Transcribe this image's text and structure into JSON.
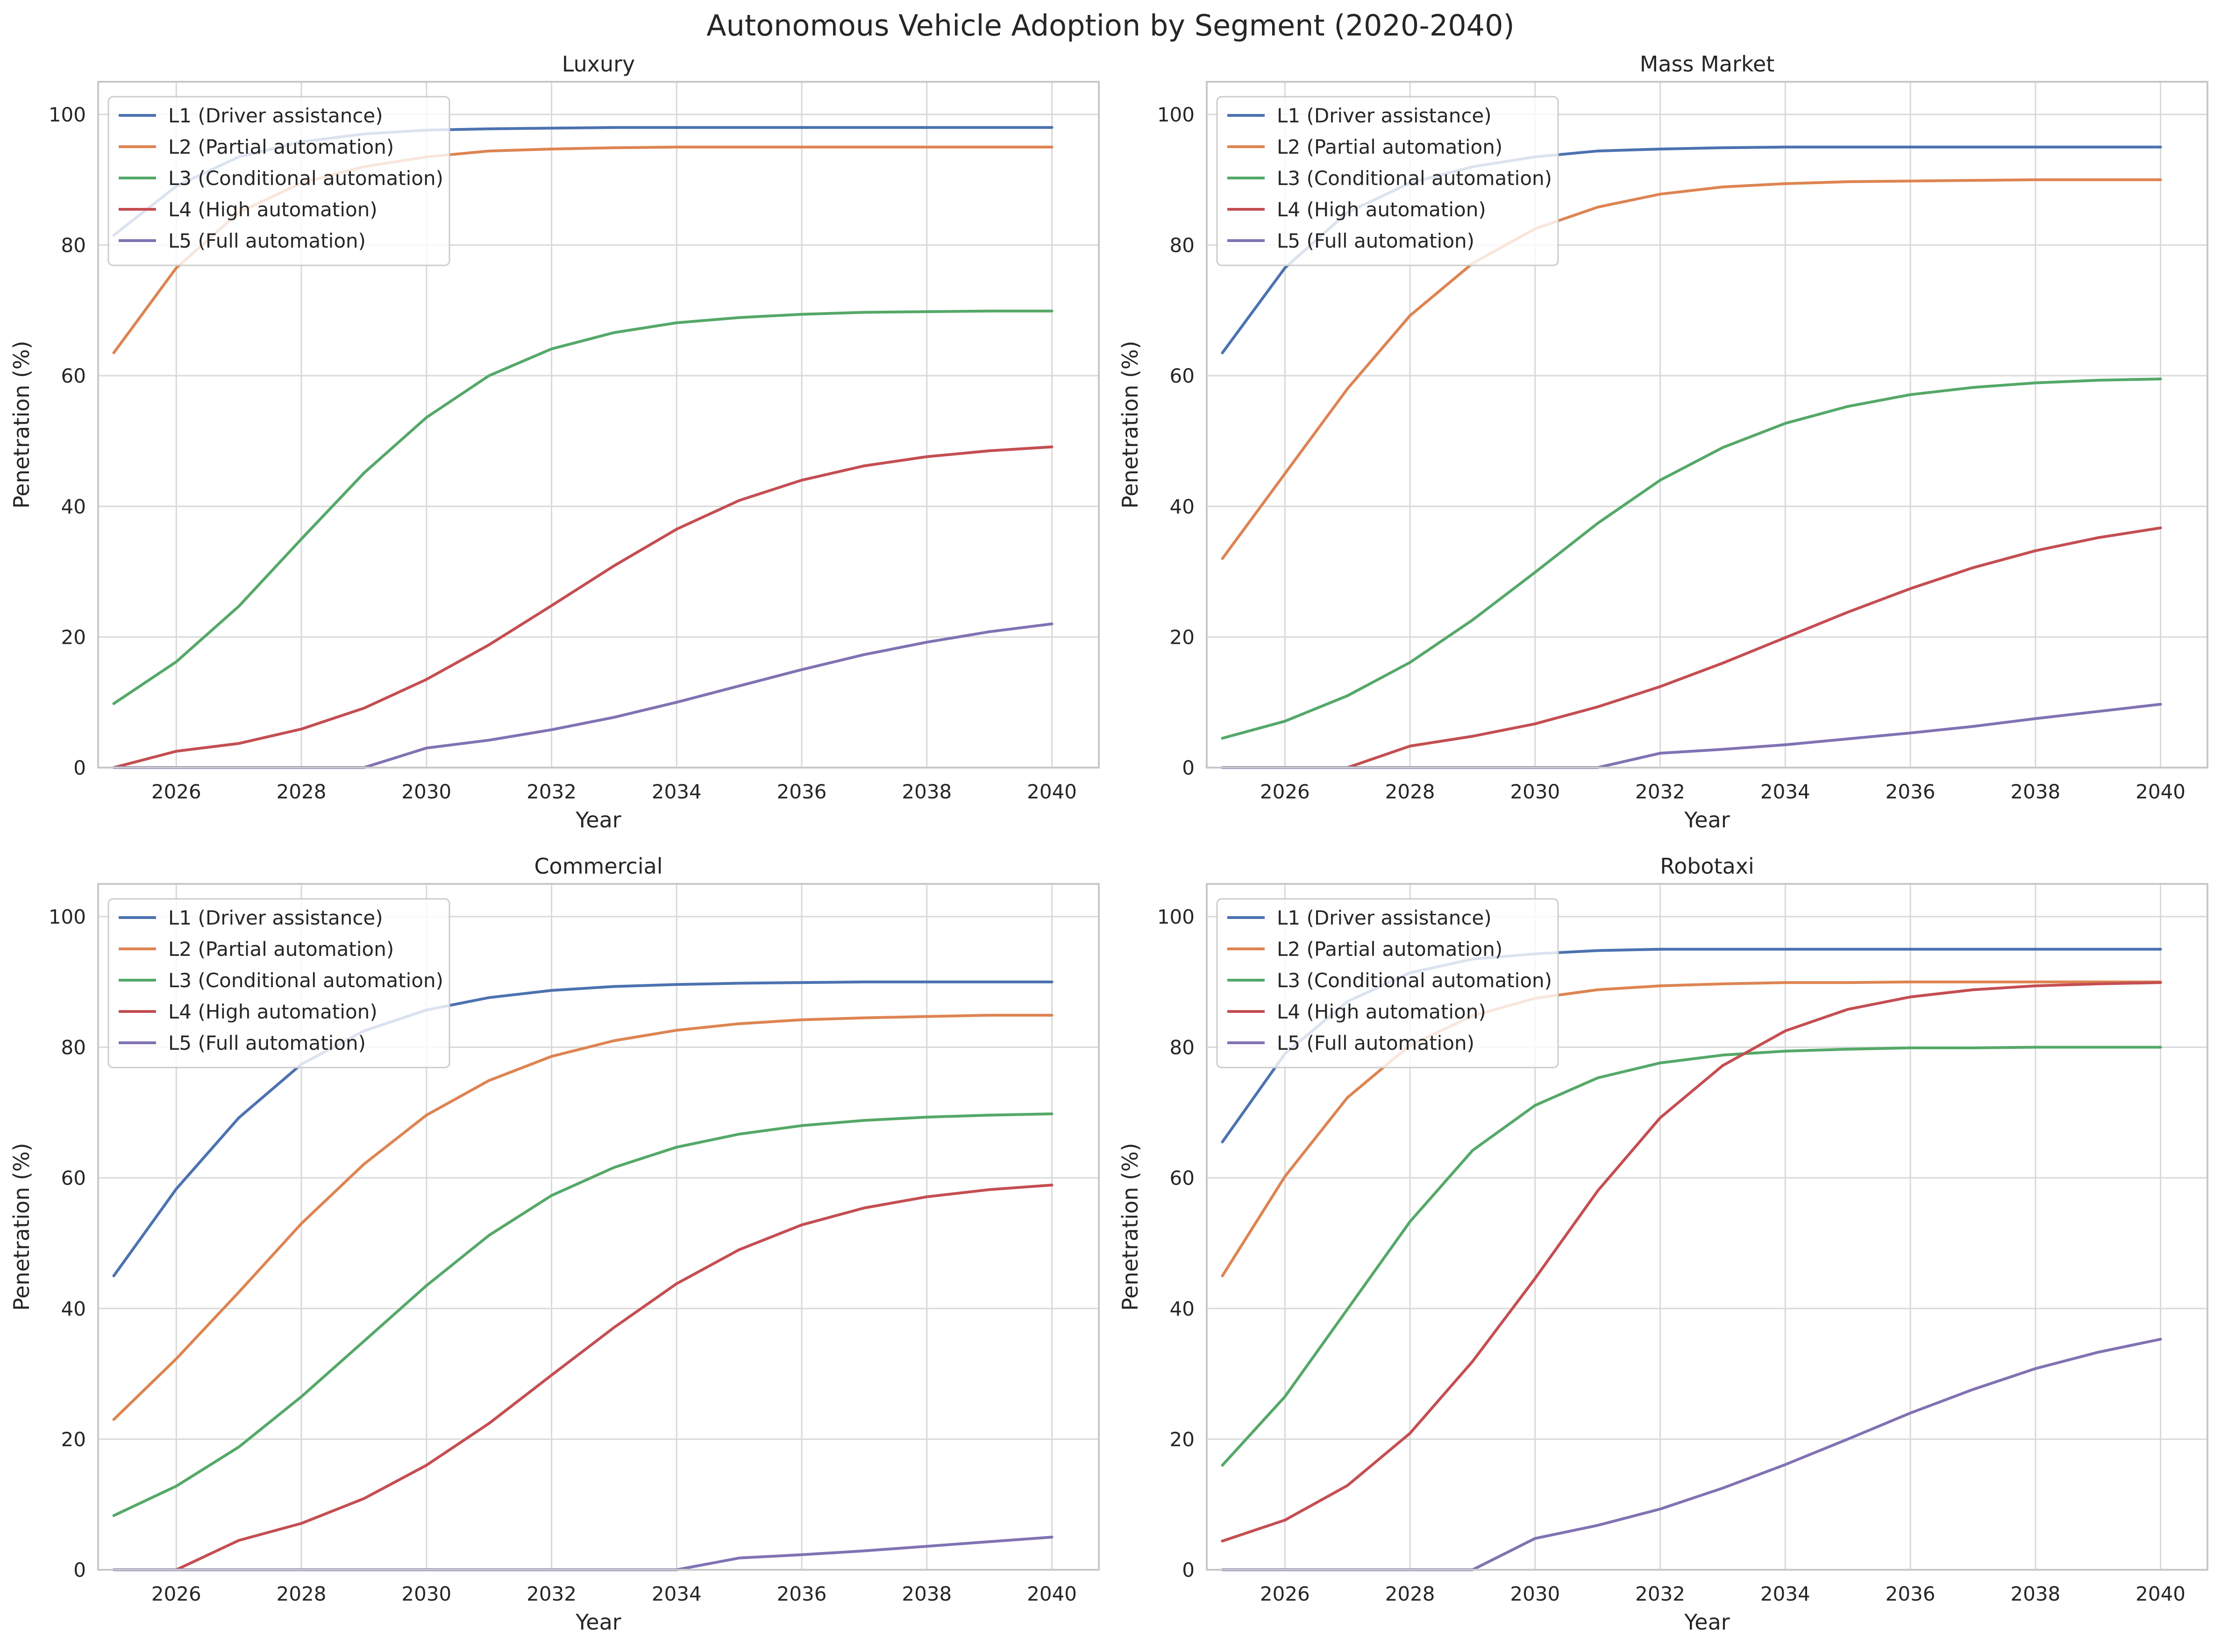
{
  "title": "Autonomous Vehicle Adoption by Segment (2020-2040)",
  "colors": {
    "L1": "#4c72b0",
    "L2": "#dd8452",
    "L3": "#55a868",
    "L4": "#c44e52",
    "L5": "#8172b3",
    "grid": "#d9d9d9",
    "frame": "#c8c8c8"
  },
  "chart_data": [
    {
      "type": "line",
      "title": "Luxury",
      "xlabel": "Year",
      "ylabel": "Penetration (%)",
      "xlim": [
        2024.75,
        2040.75
      ],
      "ylim": [
        0,
        105
      ],
      "xticks": [
        2026,
        2028,
        2030,
        2032,
        2034,
        2036,
        2038,
        2040
      ],
      "yticks": [
        0,
        20,
        40,
        60,
        80,
        100
      ],
      "grid": true,
      "legend": "upper left",
      "x": [
        2025,
        2026,
        2027,
        2028,
        2029,
        2030,
        2031,
        2032,
        2033,
        2034,
        2035,
        2036,
        2037,
        2038,
        2039,
        2040
      ],
      "series": [
        {
          "name": "L1 (Driver assistance)",
          "values": [
            81.5,
            89.0,
            93.5,
            95.8,
            97.0,
            97.6,
            97.8,
            97.9,
            98.0,
            98.0,
            98.0,
            98.0,
            98.0,
            98.0,
            98.0,
            98.0
          ]
        },
        {
          "name": "L2 (Partial automation)",
          "values": [
            63.5,
            76.5,
            85.0,
            89.5,
            92.0,
            93.5,
            94.4,
            94.7,
            94.9,
            95.0,
            95.0,
            95.0,
            95.0,
            95.0,
            95.0,
            95.0
          ]
        },
        {
          "name": "L3 (Conditional automation)",
          "values": [
            9.8,
            16.2,
            24.7,
            35.0,
            45.1,
            53.6,
            60.0,
            64.1,
            66.6,
            68.1,
            68.9,
            69.4,
            69.7,
            69.8,
            69.9,
            69.9
          ]
        },
        {
          "name": "L4 (High automation)",
          "values": [
            0.0,
            2.5,
            3.7,
            5.9,
            9.1,
            13.5,
            18.8,
            24.8,
            30.9,
            36.5,
            40.9,
            44.0,
            46.2,
            47.6,
            48.5,
            49.1
          ]
        },
        {
          "name": "L5 (Full automation)",
          "values": [
            0.0,
            0.0,
            0.0,
            0.0,
            0.0,
            3.0,
            4.2,
            5.8,
            7.7,
            10.0,
            12.5,
            15.0,
            17.3,
            19.2,
            20.8,
            22.0
          ]
        }
      ]
    },
    {
      "type": "line",
      "title": "Mass Market",
      "xlabel": "Year",
      "ylabel": "Penetration (%)",
      "xlim": [
        2024.75,
        2040.75
      ],
      "ylim": [
        0,
        105
      ],
      "xticks": [
        2026,
        2028,
        2030,
        2032,
        2034,
        2036,
        2038,
        2040
      ],
      "yticks": [
        0,
        20,
        40,
        60,
        80,
        100
      ],
      "grid": true,
      "legend": "upper left",
      "x": [
        2025,
        2026,
        2027,
        2028,
        2029,
        2030,
        2031,
        2032,
        2033,
        2034,
        2035,
        2036,
        2037,
        2038,
        2039,
        2040
      ],
      "series": [
        {
          "name": "L1 (Driver assistance)",
          "values": [
            63.5,
            76.5,
            85.0,
            89.5,
            92.0,
            93.5,
            94.4,
            94.7,
            94.9,
            95.0,
            95.0,
            95.0,
            95.0,
            95.0,
            95.0,
            95.0
          ]
        },
        {
          "name": "L2 (Partial automation)",
          "values": [
            32.0,
            45.0,
            58.0,
            69.2,
            77.2,
            82.5,
            85.8,
            87.8,
            88.9,
            89.4,
            89.7,
            89.8,
            89.9,
            90.0,
            90.0,
            90.0
          ]
        },
        {
          "name": "L3 (Conditional automation)",
          "values": [
            4.5,
            7.1,
            11.0,
            16.1,
            22.6,
            29.9,
            37.4,
            44.0,
            49.0,
            52.7,
            55.3,
            57.1,
            58.2,
            58.9,
            59.3,
            59.5
          ]
        },
        {
          "name": "L4 (High automation)",
          "values": [
            0.0,
            0.0,
            0.0,
            3.3,
            4.8,
            6.7,
            9.3,
            12.4,
            16.0,
            19.9,
            23.8,
            27.4,
            30.6,
            33.2,
            35.2,
            36.7
          ]
        },
        {
          "name": "L5 (Full automation)",
          "values": [
            0.0,
            0.0,
            0.0,
            0.0,
            0.0,
            0.0,
            0.0,
            2.2,
            2.8,
            3.5,
            4.4,
            5.3,
            6.3,
            7.5,
            8.6,
            9.7
          ]
        }
      ]
    },
    {
      "type": "line",
      "title": "Commercial",
      "xlabel": "Year",
      "ylabel": "Penetration (%)",
      "xlim": [
        2024.75,
        2040.75
      ],
      "ylim": [
        0,
        105
      ],
      "xticks": [
        2026,
        2028,
        2030,
        2032,
        2034,
        2036,
        2038,
        2040
      ],
      "yticks": [
        0,
        20,
        40,
        60,
        80,
        100
      ],
      "grid": true,
      "legend": "upper left",
      "x": [
        2025,
        2026,
        2027,
        2028,
        2029,
        2030,
        2031,
        2032,
        2033,
        2034,
        2035,
        2036,
        2037,
        2038,
        2039,
        2040
      ],
      "series": [
        {
          "name": "L1 (Driver assistance)",
          "values": [
            45.0,
            58.3,
            69.2,
            77.4,
            82.5,
            85.7,
            87.6,
            88.7,
            89.3,
            89.6,
            89.8,
            89.9,
            90.0,
            90.0,
            90.0,
            90.0
          ]
        },
        {
          "name": "L2 (Partial automation)",
          "values": [
            23.0,
            32.3,
            42.5,
            53.0,
            62.1,
            69.6,
            74.9,
            78.6,
            81.0,
            82.6,
            83.6,
            84.2,
            84.5,
            84.7,
            84.9,
            84.9
          ]
        },
        {
          "name": "L3 (Conditional automation)",
          "values": [
            8.3,
            12.8,
            18.8,
            26.5,
            35.0,
            43.5,
            51.2,
            57.3,
            61.6,
            64.7,
            66.7,
            68.0,
            68.8,
            69.3,
            69.6,
            69.8
          ]
        },
        {
          "name": "L4 (High automation)",
          "values": [
            0.0,
            0.0,
            4.5,
            7.1,
            10.9,
            16.0,
            22.4,
            29.8,
            37.1,
            43.8,
            49.0,
            52.8,
            55.4,
            57.1,
            58.2,
            58.9
          ]
        },
        {
          "name": "L5 (Full automation)",
          "values": [
            0.0,
            0.0,
            0.0,
            0.0,
            0.0,
            0.0,
            0.0,
            0.0,
            0.0,
            0.0,
            1.8,
            2.3,
            2.9,
            3.6,
            4.3,
            5.0
          ]
        }
      ]
    },
    {
      "type": "line",
      "title": "Robotaxi",
      "xlabel": "Year",
      "ylabel": "Penetration (%)",
      "xlim": [
        2024.75,
        2040.75
      ],
      "ylim": [
        0,
        105
      ],
      "xticks": [
        2026,
        2028,
        2030,
        2032,
        2034,
        2036,
        2038,
        2040
      ],
      "yticks": [
        0,
        20,
        40,
        60,
        80,
        100
      ],
      "grid": true,
      "legend": "upper left",
      "x": [
        2025,
        2026,
        2027,
        2028,
        2029,
        2030,
        2031,
        2032,
        2033,
        2034,
        2035,
        2036,
        2037,
        2038,
        2039,
        2040
      ],
      "series": [
        {
          "name": "L1 (Driver assistance)",
          "values": [
            65.5,
            79.0,
            87.0,
            91.4,
            93.5,
            94.3,
            94.8,
            95.0,
            95.0,
            95.0,
            95.0,
            95.0,
            95.0,
            95.0,
            95.0,
            95.0
          ]
        },
        {
          "name": "L2 (Partial automation)",
          "values": [
            45.0,
            60.2,
            72.3,
            80.3,
            84.8,
            87.5,
            88.8,
            89.4,
            89.7,
            89.9,
            89.9,
            90.0,
            90.0,
            90.0,
            90.0,
            90.0
          ]
        },
        {
          "name": "L3 (Conditional automation)",
          "values": [
            16.0,
            26.5,
            39.9,
            53.3,
            64.2,
            71.1,
            75.3,
            77.6,
            78.8,
            79.4,
            79.7,
            79.9,
            79.9,
            80.0,
            80.0,
            80.0
          ]
        },
        {
          "name": "L4 (High automation)",
          "values": [
            4.4,
            7.6,
            12.9,
            20.9,
            31.9,
            44.6,
            58.0,
            69.2,
            77.2,
            82.5,
            85.8,
            87.7,
            88.8,
            89.4,
            89.7,
            89.9
          ]
        },
        {
          "name": "L5 (Full automation)",
          "values": [
            0.0,
            0.0,
            0.0,
            0.0,
            0.0,
            4.8,
            6.8,
            9.3,
            12.5,
            16.1,
            20.0,
            24.0,
            27.6,
            30.8,
            33.3,
            35.3
          ]
        }
      ]
    }
  ]
}
